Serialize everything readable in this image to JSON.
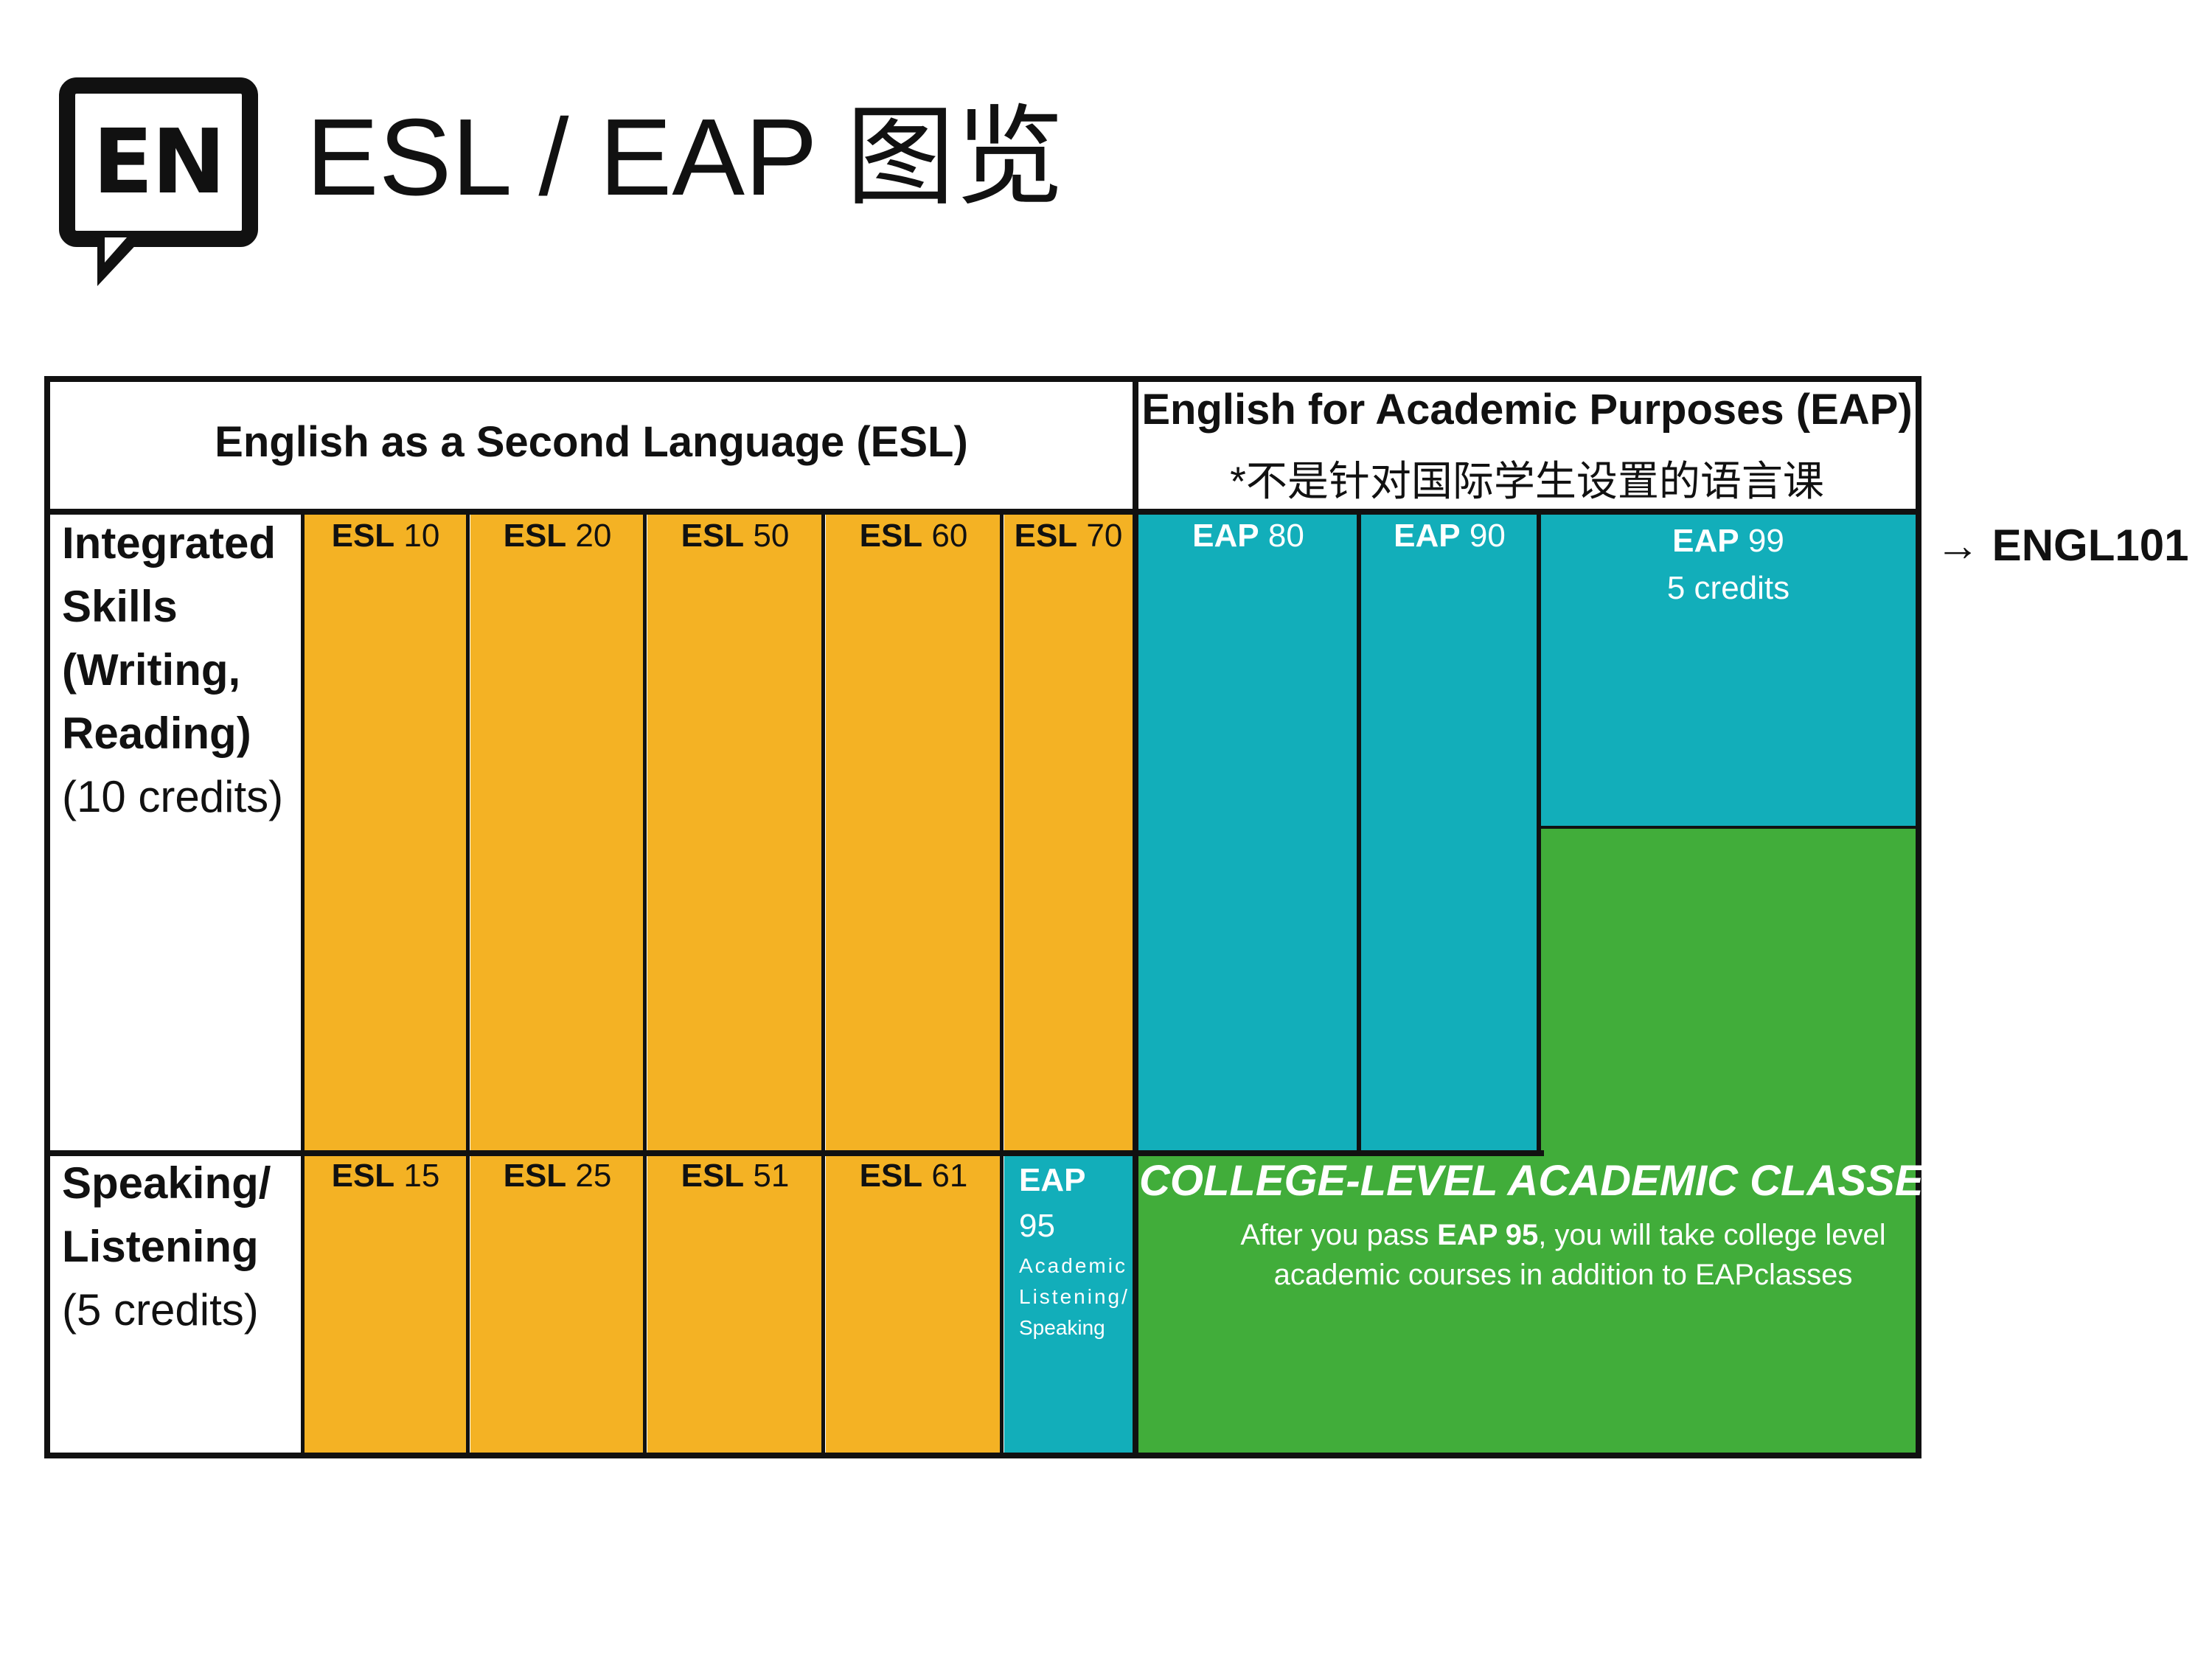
{
  "header": {
    "logo_text": "EN",
    "title": "ESL / EAP 图览"
  },
  "table": {
    "esl_header": "English as a Second Language (ESL)",
    "eap_header": "English for Academic Purposes (EAP)",
    "eap_note": "*不是针对国际学生设置的语言课",
    "rows": [
      {
        "label_lines": [
          "Integrated",
          "Skills",
          "(Writing,",
          "Reading)"
        ],
        "credits": "(10 credits)"
      },
      {
        "label_lines": [
          "Speaking/",
          "Listening"
        ],
        "credits": "(5 credits)"
      }
    ],
    "integrated_courses": [
      {
        "prefix": "ESL",
        "number": "10"
      },
      {
        "prefix": "ESL",
        "number": "20"
      },
      {
        "prefix": "ESL",
        "number": "50"
      },
      {
        "prefix": "ESL",
        "number": "60"
      },
      {
        "prefix": "ESL",
        "number": "70"
      },
      {
        "prefix": "EAP",
        "number": "80"
      },
      {
        "prefix": "EAP",
        "number": "90"
      },
      {
        "prefix": "EAP",
        "number": "99",
        "credits": "5 credits"
      }
    ],
    "speaking_courses": [
      {
        "prefix": "ESL",
        "number": "15"
      },
      {
        "prefix": "ESL",
        "number": "25"
      },
      {
        "prefix": "ESL",
        "number": "51"
      },
      {
        "prefix": "ESL",
        "number": "61"
      },
      {
        "prefix": "EAP",
        "number": "95",
        "subtitle_lines": [
          "Academic",
          "Listening/",
          "Speaking"
        ]
      }
    ],
    "college_block": {
      "title": "COLLEGE-LEVEL ACADEMIC CLASSES",
      "body_pre": "After you pass ",
      "body_bold": "EAP 95",
      "body_post_line1": ", you will take college level",
      "body_line2": "academic courses in addition to EAPclasses"
    },
    "next_course": {
      "arrow": "→",
      "label": "ENGL101"
    }
  },
  "colors": {
    "esl_orange": "#F4B224",
    "eap_teal": "#12AEBA",
    "college_green": "#41AD3A"
  }
}
